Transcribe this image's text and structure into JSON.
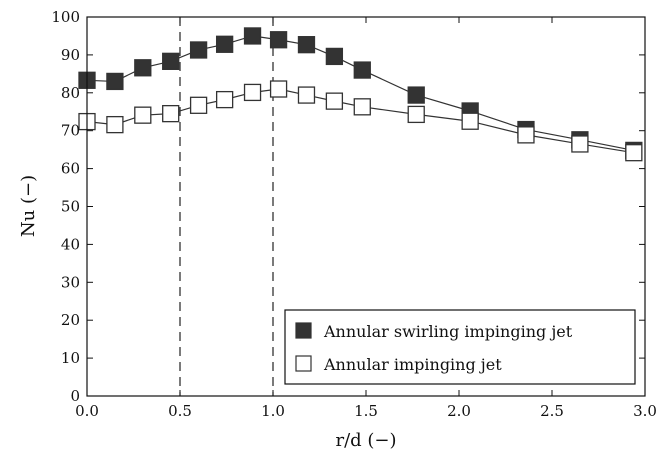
{
  "chart_data": {
    "type": "line",
    "xlabel": "r/d (−)",
    "ylabel": "Nu (−)",
    "xlim": [
      0.0,
      3.0
    ],
    "ylim": [
      0,
      100
    ],
    "xticks": [
      "0.0",
      "0.5",
      "1.0",
      "1.5",
      "2.0",
      "2.5",
      "3.0"
    ],
    "yticks": [
      "0",
      "10",
      "20",
      "30",
      "40",
      "50",
      "60",
      "70",
      "80",
      "90",
      "100"
    ],
    "grid": false,
    "legend_position": "bottom-right",
    "reference_lines_x": [
      0.5,
      1.0
    ],
    "series": [
      {
        "name": "Annular swirling impinging jet",
        "marker": "filled-square",
        "color": "#333333",
        "x": [
          0.0,
          0.15,
          0.3,
          0.45,
          0.6,
          0.74,
          0.89,
          1.03,
          1.18,
          1.33,
          1.48,
          1.77,
          2.06,
          2.36,
          2.65,
          2.94
        ],
        "y": [
          83.3,
          83.0,
          86.6,
          88.3,
          91.3,
          92.8,
          95.0,
          94.0,
          92.7,
          89.6,
          86.0,
          79.4,
          75.2,
          70.3,
          67.6,
          64.8
        ]
      },
      {
        "name": "Annular impinging jet",
        "marker": "open-square",
        "color": "#333333",
        "x": [
          0.0,
          0.15,
          0.3,
          0.45,
          0.6,
          0.74,
          0.89,
          1.03,
          1.18,
          1.33,
          1.48,
          1.77,
          2.06,
          2.36,
          2.65,
          2.94
        ],
        "y": [
          72.4,
          71.6,
          74.1,
          74.5,
          76.7,
          78.2,
          80.1,
          81.0,
          79.4,
          77.8,
          76.3,
          74.3,
          72.5,
          68.9,
          66.5,
          64.2
        ]
      }
    ]
  }
}
